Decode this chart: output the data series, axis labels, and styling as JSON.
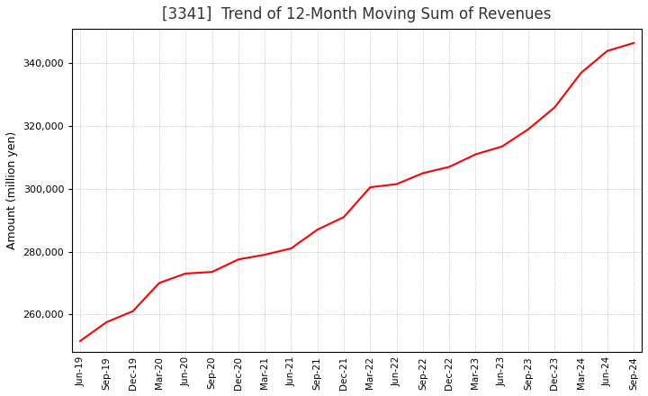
{
  "title": "[3341]  Trend of 12-Month Moving Sum of Revenues",
  "ylabel": "Amount (million yen)",
  "line_color": "#FF0000",
  "line_width": 1.5,
  "background_color": "#FFFFFF",
  "plot_bg_color": "#FFFFFF",
  "grid_color": "#999999",
  "title_color": "#333333",
  "ylim": [
    248000,
    351000
  ],
  "yticks": [
    260000,
    280000,
    300000,
    320000,
    340000
  ],
  "x_labels": [
    "Jun-19",
    "Sep-19",
    "Dec-19",
    "Mar-20",
    "Jun-20",
    "Sep-20",
    "Dec-20",
    "Mar-21",
    "Jun-21",
    "Sep-21",
    "Dec-21",
    "Mar-22",
    "Jun-22",
    "Sep-22",
    "Dec-22",
    "Mar-23",
    "Jun-23",
    "Sep-23",
    "Dec-23",
    "Mar-24",
    "Jun-24",
    "Sep-24"
  ],
  "values": [
    251500,
    257500,
    261000,
    270000,
    273000,
    273500,
    277500,
    279000,
    281000,
    287000,
    291000,
    300500,
    301500,
    305000,
    307000,
    311000,
    313500,
    319000,
    326000,
    337000,
    344000,
    346500
  ],
  "title_fontsize": 12,
  "ylabel_fontsize": 9,
  "tick_fontsize": 8,
  "xtick_fontsize": 7.5
}
